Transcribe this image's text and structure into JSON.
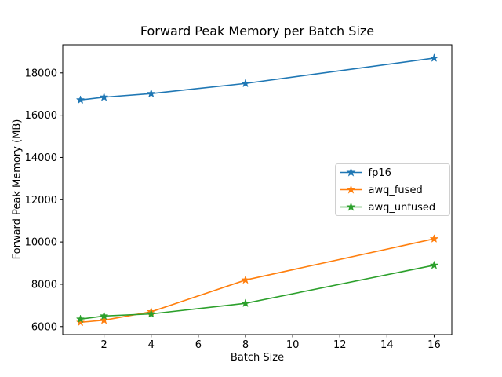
{
  "window": {
    "background": "#ffffff",
    "text_color": "#000000",
    "spine_color": "#000000",
    "legend_border_color": "#d0d0d0"
  },
  "chart_data": {
    "type": "line",
    "title": "Forward Peak Memory per Batch Size",
    "xlabel": "Batch Size",
    "ylabel": "Forward Peak Memory (MB)",
    "x": [
      1,
      2,
      4,
      8,
      16
    ],
    "series": [
      {
        "name": "fp16",
        "color": "#1f77b4",
        "marker": "star",
        "values": [
          16720,
          16850,
          17020,
          17500,
          18700
        ]
      },
      {
        "name": "awq_fused",
        "color": "#ff7f0e",
        "marker": "star",
        "values": [
          6200,
          6300,
          6700,
          8200,
          10150
        ]
      },
      {
        "name": "awq_unfused",
        "color": "#2ca02c",
        "marker": "star",
        "values": [
          6350,
          6500,
          6600,
          7100,
          8900
        ]
      }
    ],
    "xlim": [
      0.25,
      16.75
    ],
    "ylim": [
      5620,
      19330
    ],
    "xticks": [
      2,
      4,
      6,
      8,
      10,
      12,
      14,
      16
    ],
    "yticks": [
      6000,
      8000,
      10000,
      12000,
      14000,
      16000,
      18000
    ],
    "grid": false,
    "legend_position": "center right"
  }
}
